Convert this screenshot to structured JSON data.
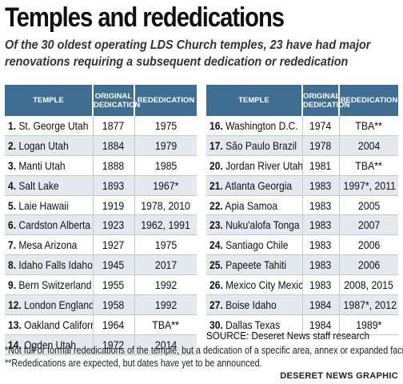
{
  "title": "Temples and rededications",
  "subtitle_line1": "Of the 30 oldest operating LDS Church temples, 23 have had major",
  "subtitle_line2": "renovations requiring a subsequent dedication or rededication",
  "headers": {
    "temple": "TEMPLE",
    "original_1": "ORIGINAL",
    "original_2": "DEDICATION",
    "rededication": "REDEDICATION"
  },
  "left_rows": [
    {
      "rank": "1.",
      "name": "St. George Utah",
      "original": "1877",
      "rededication": "1975"
    },
    {
      "rank": "2.",
      "name": "Logan Utah",
      "original": "1884",
      "rededication": "1979"
    },
    {
      "rank": "3.",
      "name": "Manti Utah",
      "original": "1888",
      "rededication": "1985"
    },
    {
      "rank": "4.",
      "name": "Salt Lake",
      "original": "1893",
      "rededication": "1967*"
    },
    {
      "rank": "5.",
      "name": "Laie Hawaii",
      "original": "1919",
      "rededication": "1978, 2010"
    },
    {
      "rank": "6.",
      "name": "Cardston Alberta",
      "original": "1923",
      "rededication": "1962, 1991"
    },
    {
      "rank": "7.",
      "name": "Mesa Arizona",
      "original": "1927",
      "rededication": "1975"
    },
    {
      "rank": "8.",
      "name": "Idaho Falls Idaho",
      "original": "1945",
      "rededication": "2017"
    },
    {
      "rank": "9.",
      "name": "Bern Switzerland",
      "original": "1955",
      "rededication": "1992"
    },
    {
      "rank": "12.",
      "name": "London England",
      "original": "1958",
      "rededication": "1992"
    },
    {
      "rank": "13.",
      "name": "Oakland California",
      "original": "1964",
      "rededication": "TBA**"
    },
    {
      "rank": "14.",
      "name": "Ogden Utah",
      "original": "1972",
      "rededication": "2014"
    }
  ],
  "right_rows": [
    {
      "rank": "16.",
      "name": "Washington D.C.",
      "original": "1974",
      "rededication": "TBA**"
    },
    {
      "rank": "17.",
      "name": "São Paulo Brazil",
      "original": "1978",
      "rededication": "2004"
    },
    {
      "rank": "20.",
      "name": "Jordan River Utah",
      "original": "1981",
      "rededication": "TBA**"
    },
    {
      "rank": "21.",
      "name": "Atlanta Georgia",
      "original": "1983",
      "rededication": "1997*, 2011"
    },
    {
      "rank": "22.",
      "name": "Apia Samoa",
      "original": "1983",
      "rededication": "2005"
    },
    {
      "rank": "23.",
      "name": "Nuku'alofa Tonga",
      "original": "1983",
      "rededication": "2007"
    },
    {
      "rank": "24.",
      "name": "Santiago Chile",
      "original": "1983",
      "rededication": "2006"
    },
    {
      "rank": "25.",
      "name": "Papeete Tahiti",
      "original": "1983",
      "rededication": "2006"
    },
    {
      "rank": "26.",
      "name": "Mexico City Mexico",
      "original": "1983",
      "rededication": "2008, 2015"
    },
    {
      "rank": "27.",
      "name": "Boise Idaho",
      "original": "1984",
      "rededication": "1987*, 2012"
    },
    {
      "rank": "30.",
      "name": "Dallas Texas",
      "original": "1984",
      "rededication": "1989*"
    }
  ],
  "source": "SOURCE: Deseret News staff research",
  "footnote1": "*Not full or formal rededications of the temple, but a dedication of a specific area, annex or expanded facilities.",
  "footnote2": "**Rededications are expected, but dates have yet to be announced.",
  "credit": "DESERET NEWS GRAPHIC",
  "colors": {
    "header_bg": "#3e6f92",
    "alt_row_bg": "#e4e9ee"
  }
}
